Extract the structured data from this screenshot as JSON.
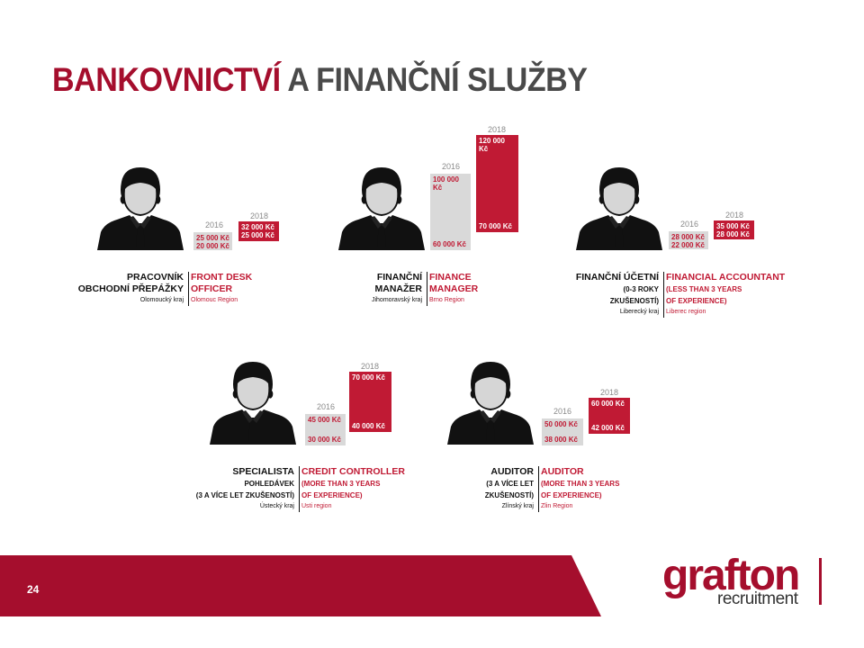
{
  "title": {
    "part1": "BANKOVNICTVÍ",
    "part2": "A FINANČNÍ SLUŽBY"
  },
  "currency": "Kč",
  "cards": [
    {
      "cz": [
        "PRACOVNÍK",
        "OBCHODNÍ PŘEPÁŽKY"
      ],
      "en": [
        "FRONT DESK",
        "OFFICER"
      ],
      "region_cz": "Olomoucký kraj",
      "region_en": "Olomouc Region",
      "y2016": {
        "year": "2016",
        "max": "25 000 Kč",
        "min": "20 000 Kč"
      },
      "y2018": {
        "year": "2018",
        "max": "32 000 Kč",
        "min": "25 000 Kč"
      }
    },
    {
      "cz": [
        "FINANČNÍ",
        "MANAŽER"
      ],
      "en": [
        "FINANCE",
        "MANAGER"
      ],
      "region_cz": "Jihomoravský kraj",
      "region_en": "Brno Region",
      "y2016": {
        "year": "2016",
        "max": "100 000 Kč",
        "min": "60 000 Kč"
      },
      "y2018": {
        "year": "2018",
        "max": "120 000 Kč",
        "min": "70 000 Kč"
      }
    },
    {
      "cz": [
        "FINANČNÍ ÚČETNÍ",
        "(0-3 ROKY",
        "ZKUŠENOSTÍ)"
      ],
      "en": [
        "FINANCIAL ACCOUNTANT",
        "(LESS THAN 3 YEARS",
        "OF EXPERIENCE)"
      ],
      "region_cz": "Liberecký kraj",
      "region_en": "Liberec region",
      "y2016": {
        "year": "2016",
        "max": "28 000 Kč",
        "min": "22 000 Kč"
      },
      "y2018": {
        "year": "2018",
        "max": "35 000 Kč",
        "min": "28 000 Kč"
      }
    },
    {
      "cz": [
        "SPECIALISTA",
        "POHLEDÁVEK",
        "(3 A VÍCE LET ZKUŠENOSTÍ)"
      ],
      "en": [
        "CREDIT CONTROLLER",
        "(MORE THAN 3 YEARS",
        "OF EXPERIENCE)"
      ],
      "region_cz": "Ústecký kraj",
      "region_en": "Usti region",
      "y2016": {
        "year": "2016",
        "max": "45 000 Kč",
        "min": "30 000 Kč"
      },
      "y2018": {
        "year": "2018",
        "max": "70 000 Kč",
        "min": "40 000 Kč"
      }
    },
    {
      "cz": [
        "AUDITOR",
        "(3 A VÍCE LET",
        "ZKUŠENOSTÍ)"
      ],
      "en": [
        "AUDITOR",
        "(MORE THAN 3 YEARS",
        "OF EXPERIENCE)"
      ],
      "region_cz": "Zlínský kraj",
      "region_en": "Zlin Region",
      "y2016": {
        "year": "2016",
        "max": "50 000 Kč",
        "min": "38 000 Kč"
      },
      "y2018": {
        "year": "2018",
        "max": "60 000 Kč",
        "min": "42 000 Kč"
      }
    }
  ],
  "footer": {
    "page_number": "24",
    "logo_main": "grafton",
    "logo_sub": "recruitment"
  },
  "colors": {
    "brand": "#a50e2d",
    "bar_2018": "#c01a34",
    "bar_2016": "#d9d9d9"
  }
}
